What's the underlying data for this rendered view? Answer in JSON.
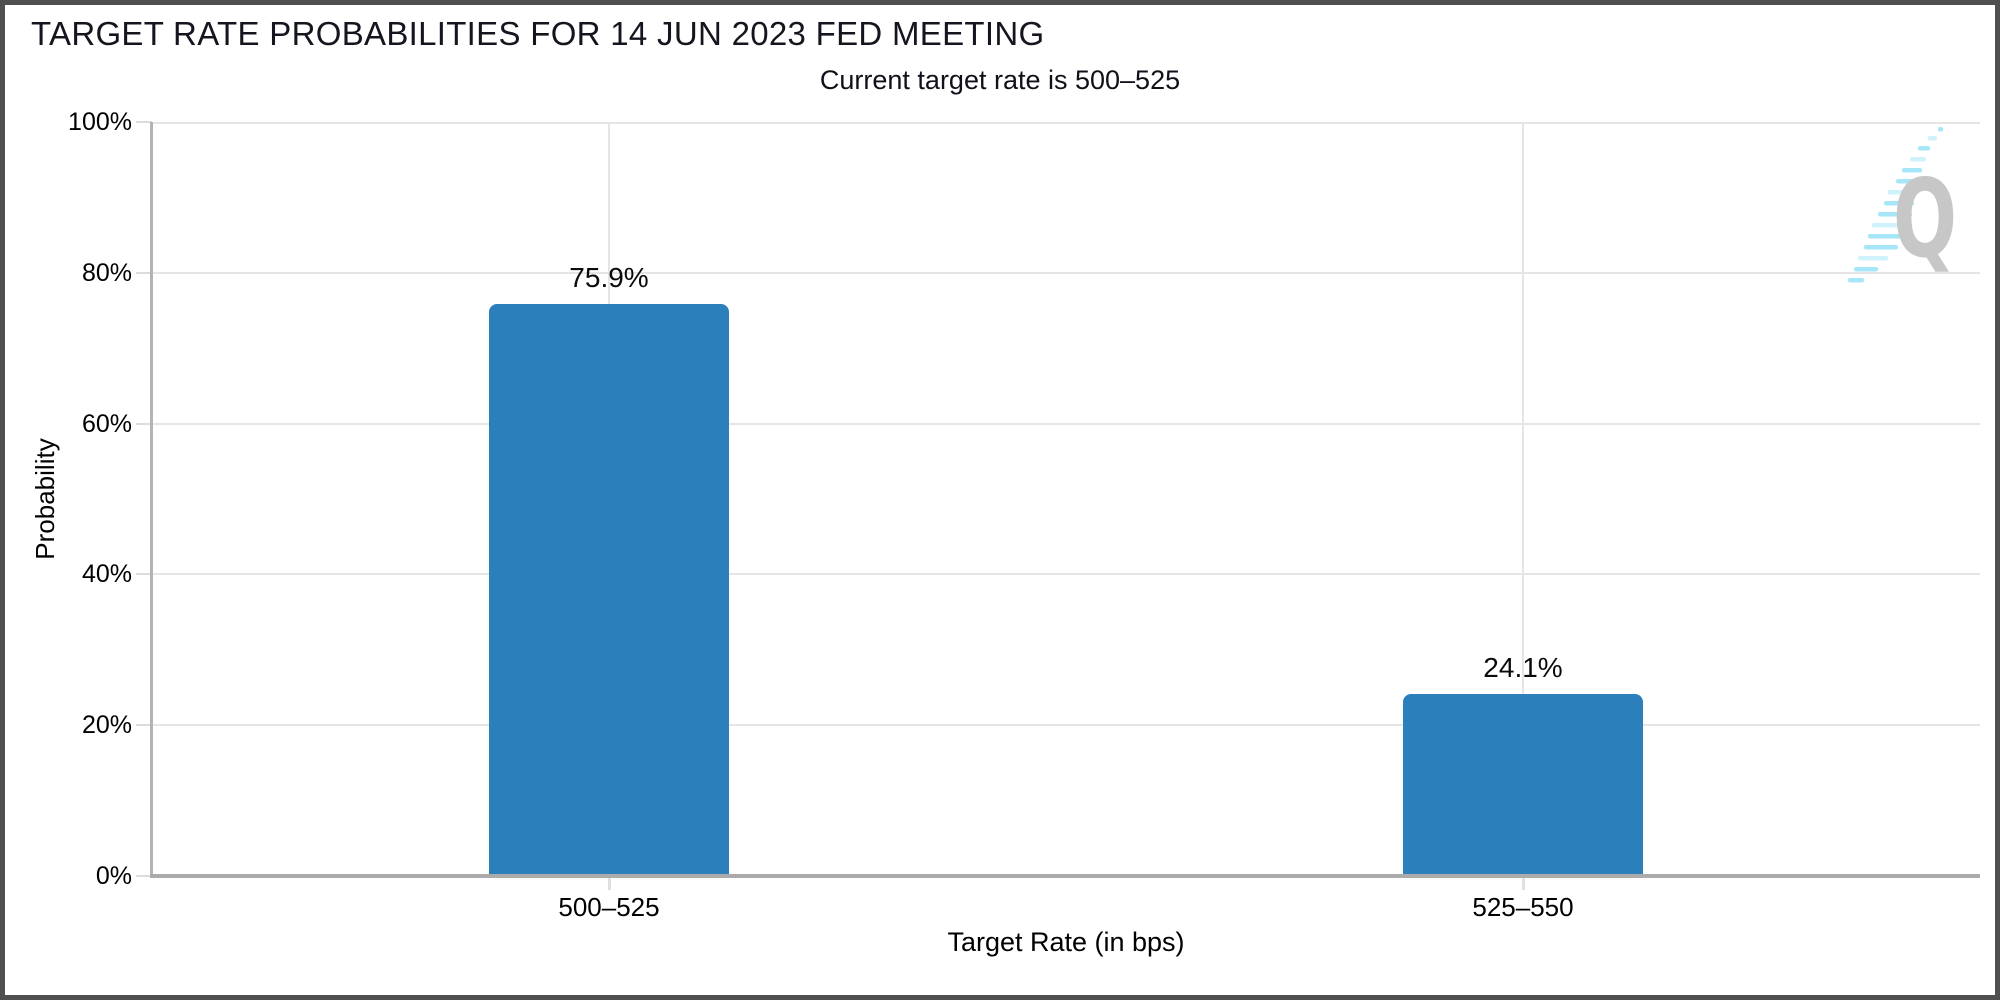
{
  "frame": {
    "border_color": "#4f4f4f",
    "background": "#ffffff"
  },
  "chart_data": {
    "type": "bar",
    "title": "TARGET RATE PROBABILITIES FOR 14 JUN 2023 FED MEETING",
    "subtitle": "Current target rate is 500–525",
    "categories": [
      "500–525",
      "525–550"
    ],
    "values": [
      75.9,
      24.1
    ],
    "value_labels": [
      "75.9%",
      "24.1%"
    ],
    "xlabel": "Target Rate (in bps)",
    "ylabel": "Probability",
    "ylim": [
      0,
      100
    ],
    "ytick_step": 20,
    "yticks": [
      "0%",
      "20%",
      "40%",
      "60%",
      "80%",
      "100%"
    ],
    "grid": true,
    "legend_position": "none",
    "bar_color": "#2B7FBA",
    "gridline_color": "#e5e5e5",
    "axis_color": "#ababab"
  },
  "watermark": {
    "letter": "Q",
    "letter_color": "#c7c7c7",
    "accent_color": "#a6e6f9",
    "accent_light": "#cff2fc"
  }
}
